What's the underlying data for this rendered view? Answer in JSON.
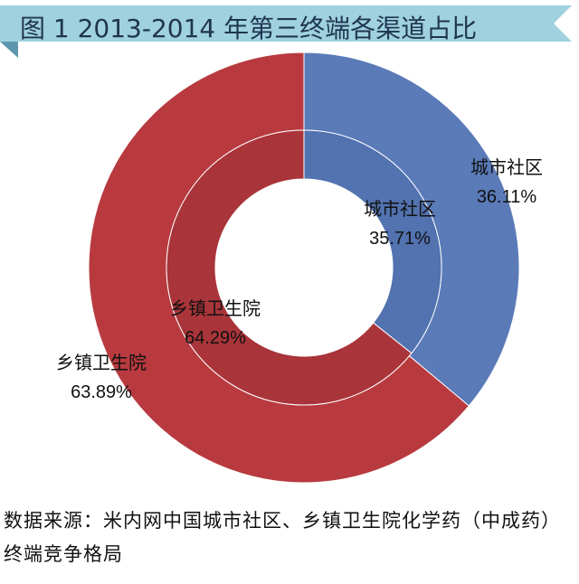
{
  "title": "图 1  2013-2014 年第三终端各渠道占比",
  "source_note": "数据来源：米内网中国城市社区、乡镇卫生院化学药（中成药）终端竞争格局",
  "colors": {
    "title_bar": "#9fd1de",
    "title_bar_dark": "#5e97ad",
    "title_text": "#1f3550",
    "city": "#5a7ab8",
    "township": "#b83a3f"
  },
  "chart_data": {
    "type": "pie",
    "variant": "nested-donut",
    "rings": [
      {
        "ring": "outer",
        "slices": [
          {
            "label": "城市社区",
            "value": 36.11,
            "value_label": "36.11%"
          },
          {
            "label": "乡镇卫生院",
            "value": 63.89,
            "value_label": "63.89%"
          }
        ]
      },
      {
        "ring": "inner",
        "slices": [
          {
            "label": "城市社区",
            "value": 35.71,
            "value_label": "35.71%"
          },
          {
            "label": "乡镇卫生院",
            "value": 64.29,
            "value_label": "64.29%"
          }
        ]
      }
    ],
    "title": "图 1  2013-2014 年第三终端各渠道占比",
    "legend": "none"
  }
}
